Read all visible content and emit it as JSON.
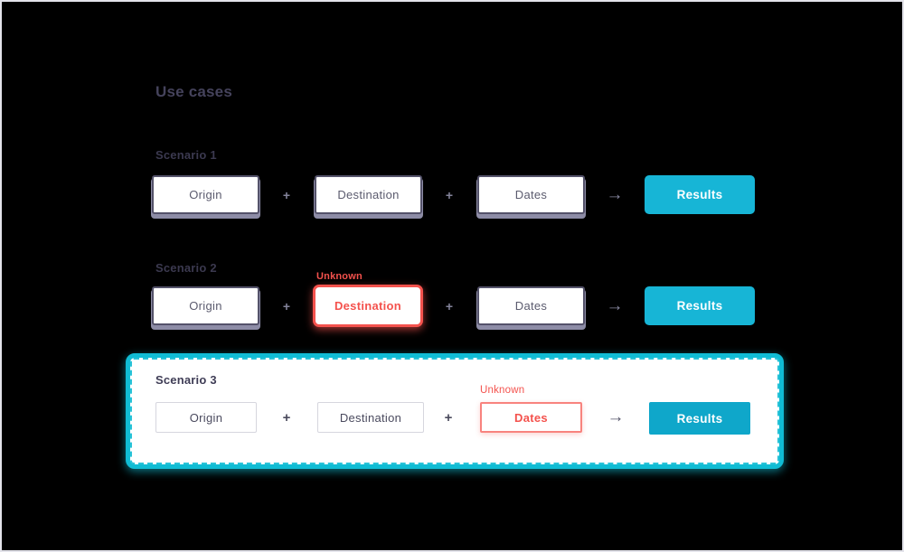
{
  "title": "Use cases",
  "glyphs": {
    "plus": "+",
    "arrow": "→"
  },
  "colors": {
    "background": "#000000",
    "frame": "#e3e3ea",
    "accent_cyan": "#17b5d6",
    "accent_cyan_dark": "#0fa7ca",
    "highlight_teal": "#10bcd4",
    "alert_red": "#f4524d",
    "box_border": "#54526a",
    "box_shadow_purple": "#8d8ca6",
    "heading_text": "#45435c",
    "box_text": "#5b5b6e"
  },
  "scenarios": [
    {
      "label": "Scenario 1",
      "steps": [
        {
          "label": "Origin"
        },
        {
          "label": "Destination"
        },
        {
          "label": "Dates"
        }
      ],
      "result": "Results"
    },
    {
      "label": "Scenario 2",
      "unknown": "Unknown",
      "steps": [
        {
          "label": "Origin"
        },
        {
          "label": "Destination",
          "state": "unknown"
        },
        {
          "label": "Dates"
        }
      ],
      "result": "Results"
    },
    {
      "label": "Scenario 3",
      "unknown": "Unknown",
      "steps": [
        {
          "label": "Origin"
        },
        {
          "label": "Destination"
        },
        {
          "label": "Dates",
          "state": "unknown"
        }
      ],
      "result": "Results"
    }
  ]
}
